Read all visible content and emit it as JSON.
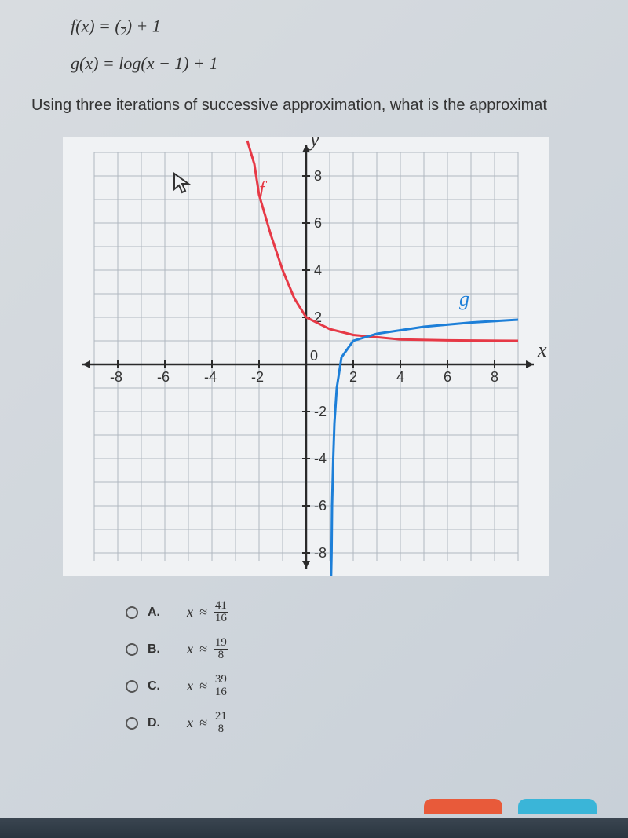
{
  "equations": {
    "f_partial": "f(x) = (⁄₂) + 1",
    "g": "g(x) = log(x − 1) + 1"
  },
  "question": "Using three iterations of successive approximation, what is the approximat",
  "chart": {
    "type": "line",
    "y_axis_label": "y",
    "x_axis_label": "x",
    "xlim": [
      -9,
      9
    ],
    "ylim": [
      -9,
      9
    ],
    "x_ticks": [
      -8,
      -6,
      -4,
      -2,
      2,
      4,
      6,
      8
    ],
    "y_ticks": [
      -8,
      -6,
      -4,
      -2,
      2,
      4,
      6,
      8
    ],
    "origin_label": "0",
    "grid_color": "#b0b8c0",
    "axis_color": "#2a2a2a",
    "background_color": "#f0f2f4",
    "curves": {
      "f": {
        "label": "f",
        "label_pos": {
          "x": -2.0,
          "y": 7.2
        },
        "color": "#e63946",
        "stroke_width": 3,
        "points": [
          {
            "x": -2.5,
            "y": 9.5
          },
          {
            "x": -2.2,
            "y": 8.5
          },
          {
            "x": -2.0,
            "y": 7.2
          },
          {
            "x": -1.5,
            "y": 5.5
          },
          {
            "x": -1.0,
            "y": 4.0
          },
          {
            "x": -0.5,
            "y": 2.8
          },
          {
            "x": 0.0,
            "y": 2.0
          },
          {
            "x": 1.0,
            "y": 1.5
          },
          {
            "x": 2.0,
            "y": 1.25
          },
          {
            "x": 4.0,
            "y": 1.06
          },
          {
            "x": 6.0,
            "y": 1.02
          },
          {
            "x": 9.0,
            "y": 1.0
          }
        ]
      },
      "g": {
        "label": "g",
        "label_pos": {
          "x": 6.5,
          "y": 2.5
        },
        "color": "#1d7fd8",
        "stroke_width": 3,
        "points": [
          {
            "x": 1.05,
            "y": -9.5
          },
          {
            "x": 1.08,
            "y": -8.0
          },
          {
            "x": 1.1,
            "y": -6.0
          },
          {
            "x": 1.15,
            "y": -4.0
          },
          {
            "x": 1.2,
            "y": -2.5
          },
          {
            "x": 1.3,
            "y": -1.0
          },
          {
            "x": 1.5,
            "y": 0.3
          },
          {
            "x": 2.0,
            "y": 1.0
          },
          {
            "x": 3.0,
            "y": 1.3
          },
          {
            "x": 5.0,
            "y": 1.6
          },
          {
            "x": 7.0,
            "y": 1.78
          },
          {
            "x": 9.0,
            "y": 1.9
          }
        ]
      }
    }
  },
  "options": [
    {
      "letter": "A.",
      "var": "x",
      "approx": "≈",
      "num": "41",
      "den": "16"
    },
    {
      "letter": "B.",
      "var": "x",
      "approx": "≈",
      "num": "19",
      "den": "8"
    },
    {
      "letter": "C.",
      "var": "x",
      "approx": "≈",
      "num": "39",
      "den": "16"
    },
    {
      "letter": "D.",
      "var": "x",
      "approx": "≈",
      "num": "21",
      "den": "8"
    }
  ]
}
